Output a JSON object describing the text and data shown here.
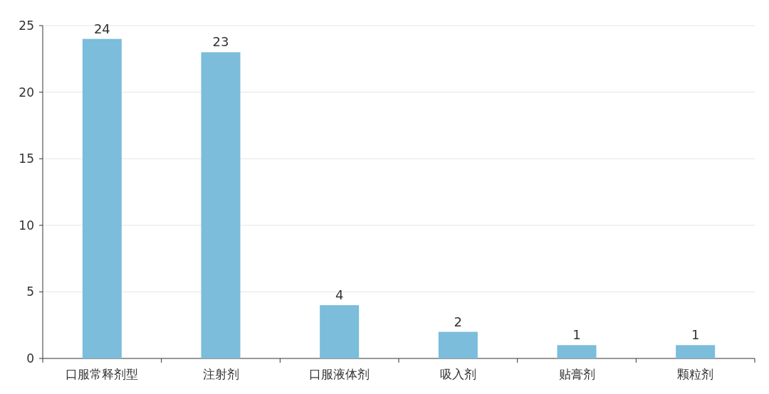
{
  "chart_data": {
    "type": "bar",
    "categories": [
      "口服常释剂型",
      "注射剂",
      "口服液体剂",
      "吸入剂",
      "贴膏剂",
      "颗粒剂"
    ],
    "values": [
      24,
      23,
      4,
      2,
      1,
      1
    ],
    "color": "#7bbdda",
    "ylim": [
      0,
      25
    ],
    "yticks": [
      0,
      5,
      10,
      15,
      20,
      25
    ],
    "grid": "y",
    "data_labels": true
  }
}
